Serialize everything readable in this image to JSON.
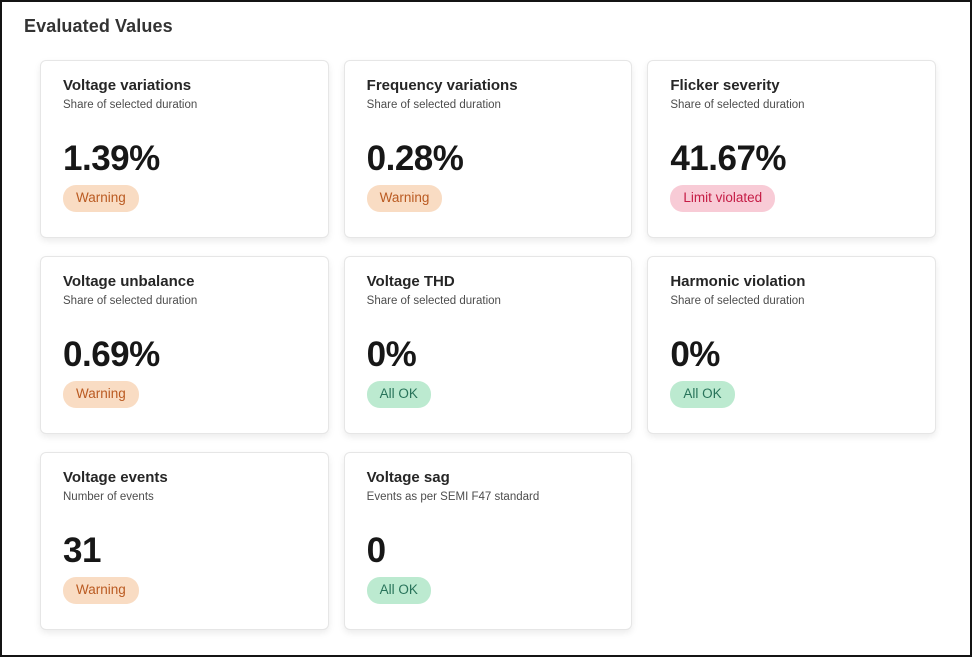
{
  "page": {
    "title": "Evaluated Values"
  },
  "colors": {
    "warning_bg": "#f9dcc3",
    "warning_text": "#ba5a21",
    "violated_bg": "#f8cbd6",
    "violated_text": "#c51c45",
    "ok_bg": "#bcead0",
    "ok_text": "#28735a",
    "frame_border": "#141414"
  },
  "cards": [
    {
      "title": "Voltage variations",
      "subtitle": "Share of selected duration",
      "value": "1.39%",
      "status": "Warning",
      "status_type": "warning"
    },
    {
      "title": "Frequency variations",
      "subtitle": "Share of selected duration",
      "value": "0.28%",
      "status": "Warning",
      "status_type": "warning"
    },
    {
      "title": "Flicker severity",
      "subtitle": "Share of selected duration",
      "value": "41.67%",
      "status": "Limit violated",
      "status_type": "violated"
    },
    {
      "title": "Voltage unbalance",
      "subtitle": "Share of selected duration",
      "value": "0.69%",
      "status": "Warning",
      "status_type": "warning"
    },
    {
      "title": "Voltage THD",
      "subtitle": "Share of selected duration",
      "value": "0%",
      "status": "All OK",
      "status_type": "ok"
    },
    {
      "title": "Harmonic violation",
      "subtitle": "Share of selected duration",
      "value": "0%",
      "status": "All OK",
      "status_type": "ok"
    },
    {
      "title": "Voltage events",
      "subtitle": "Number of events",
      "value": "31",
      "status": "Warning",
      "status_type": "warning"
    },
    {
      "title": "Voltage sag",
      "subtitle": "Events as per SEMI F47 standard",
      "value": "0",
      "status": "All OK",
      "status_type": "ok"
    }
  ]
}
